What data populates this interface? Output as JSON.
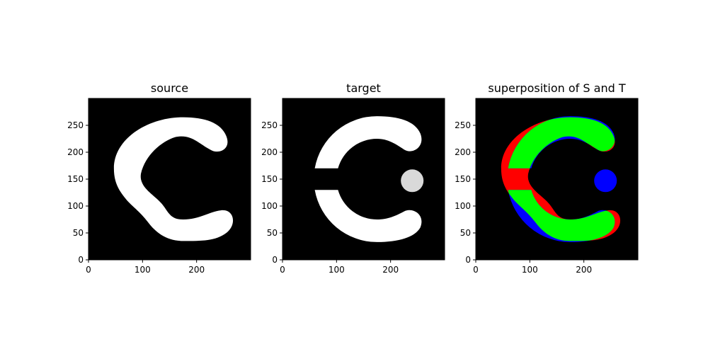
{
  "chart_data": [
    {
      "type": "image",
      "title": "source",
      "xlim": [
        0,
        300
      ],
      "ylim": [
        0,
        300
      ],
      "xticks": [
        0,
        100,
        200
      ],
      "yticks": [
        0,
        50,
        100,
        150,
        200,
        250
      ],
      "background_color": "#000000",
      "shape_color": "#ffffff",
      "shapes": [
        {
          "kind": "c-curve",
          "color": "#ffffff"
        }
      ]
    },
    {
      "type": "image",
      "title": "target",
      "xlim": [
        0,
        300
      ],
      "ylim": [
        0,
        300
      ],
      "xticks": [
        0,
        100,
        200
      ],
      "yticks": [
        0,
        50,
        100,
        150,
        200,
        250
      ],
      "background_color": "#000000",
      "shapes": [
        {
          "kind": "split-ring",
          "color": "#ffffff",
          "center": [
            175,
            150
          ],
          "outer_radius": 117,
          "inner_radius": 75,
          "gap_y": [
            130,
            170
          ]
        },
        {
          "kind": "disk",
          "color": "#d9d9d9",
          "center": [
            240,
            147
          ],
          "radius": 21
        }
      ]
    },
    {
      "type": "image",
      "title": "superposition of S and T",
      "xlim": [
        0,
        300
      ],
      "ylim": [
        0,
        300
      ],
      "xticks": [
        0,
        100,
        200
      ],
      "yticks": [
        0,
        50,
        100,
        150,
        200,
        250
      ],
      "background_color": "#000000",
      "colors": {
        "source_only": "#ff0000",
        "target_only": "#0000ff",
        "both": "#00ff00"
      }
    }
  ]
}
